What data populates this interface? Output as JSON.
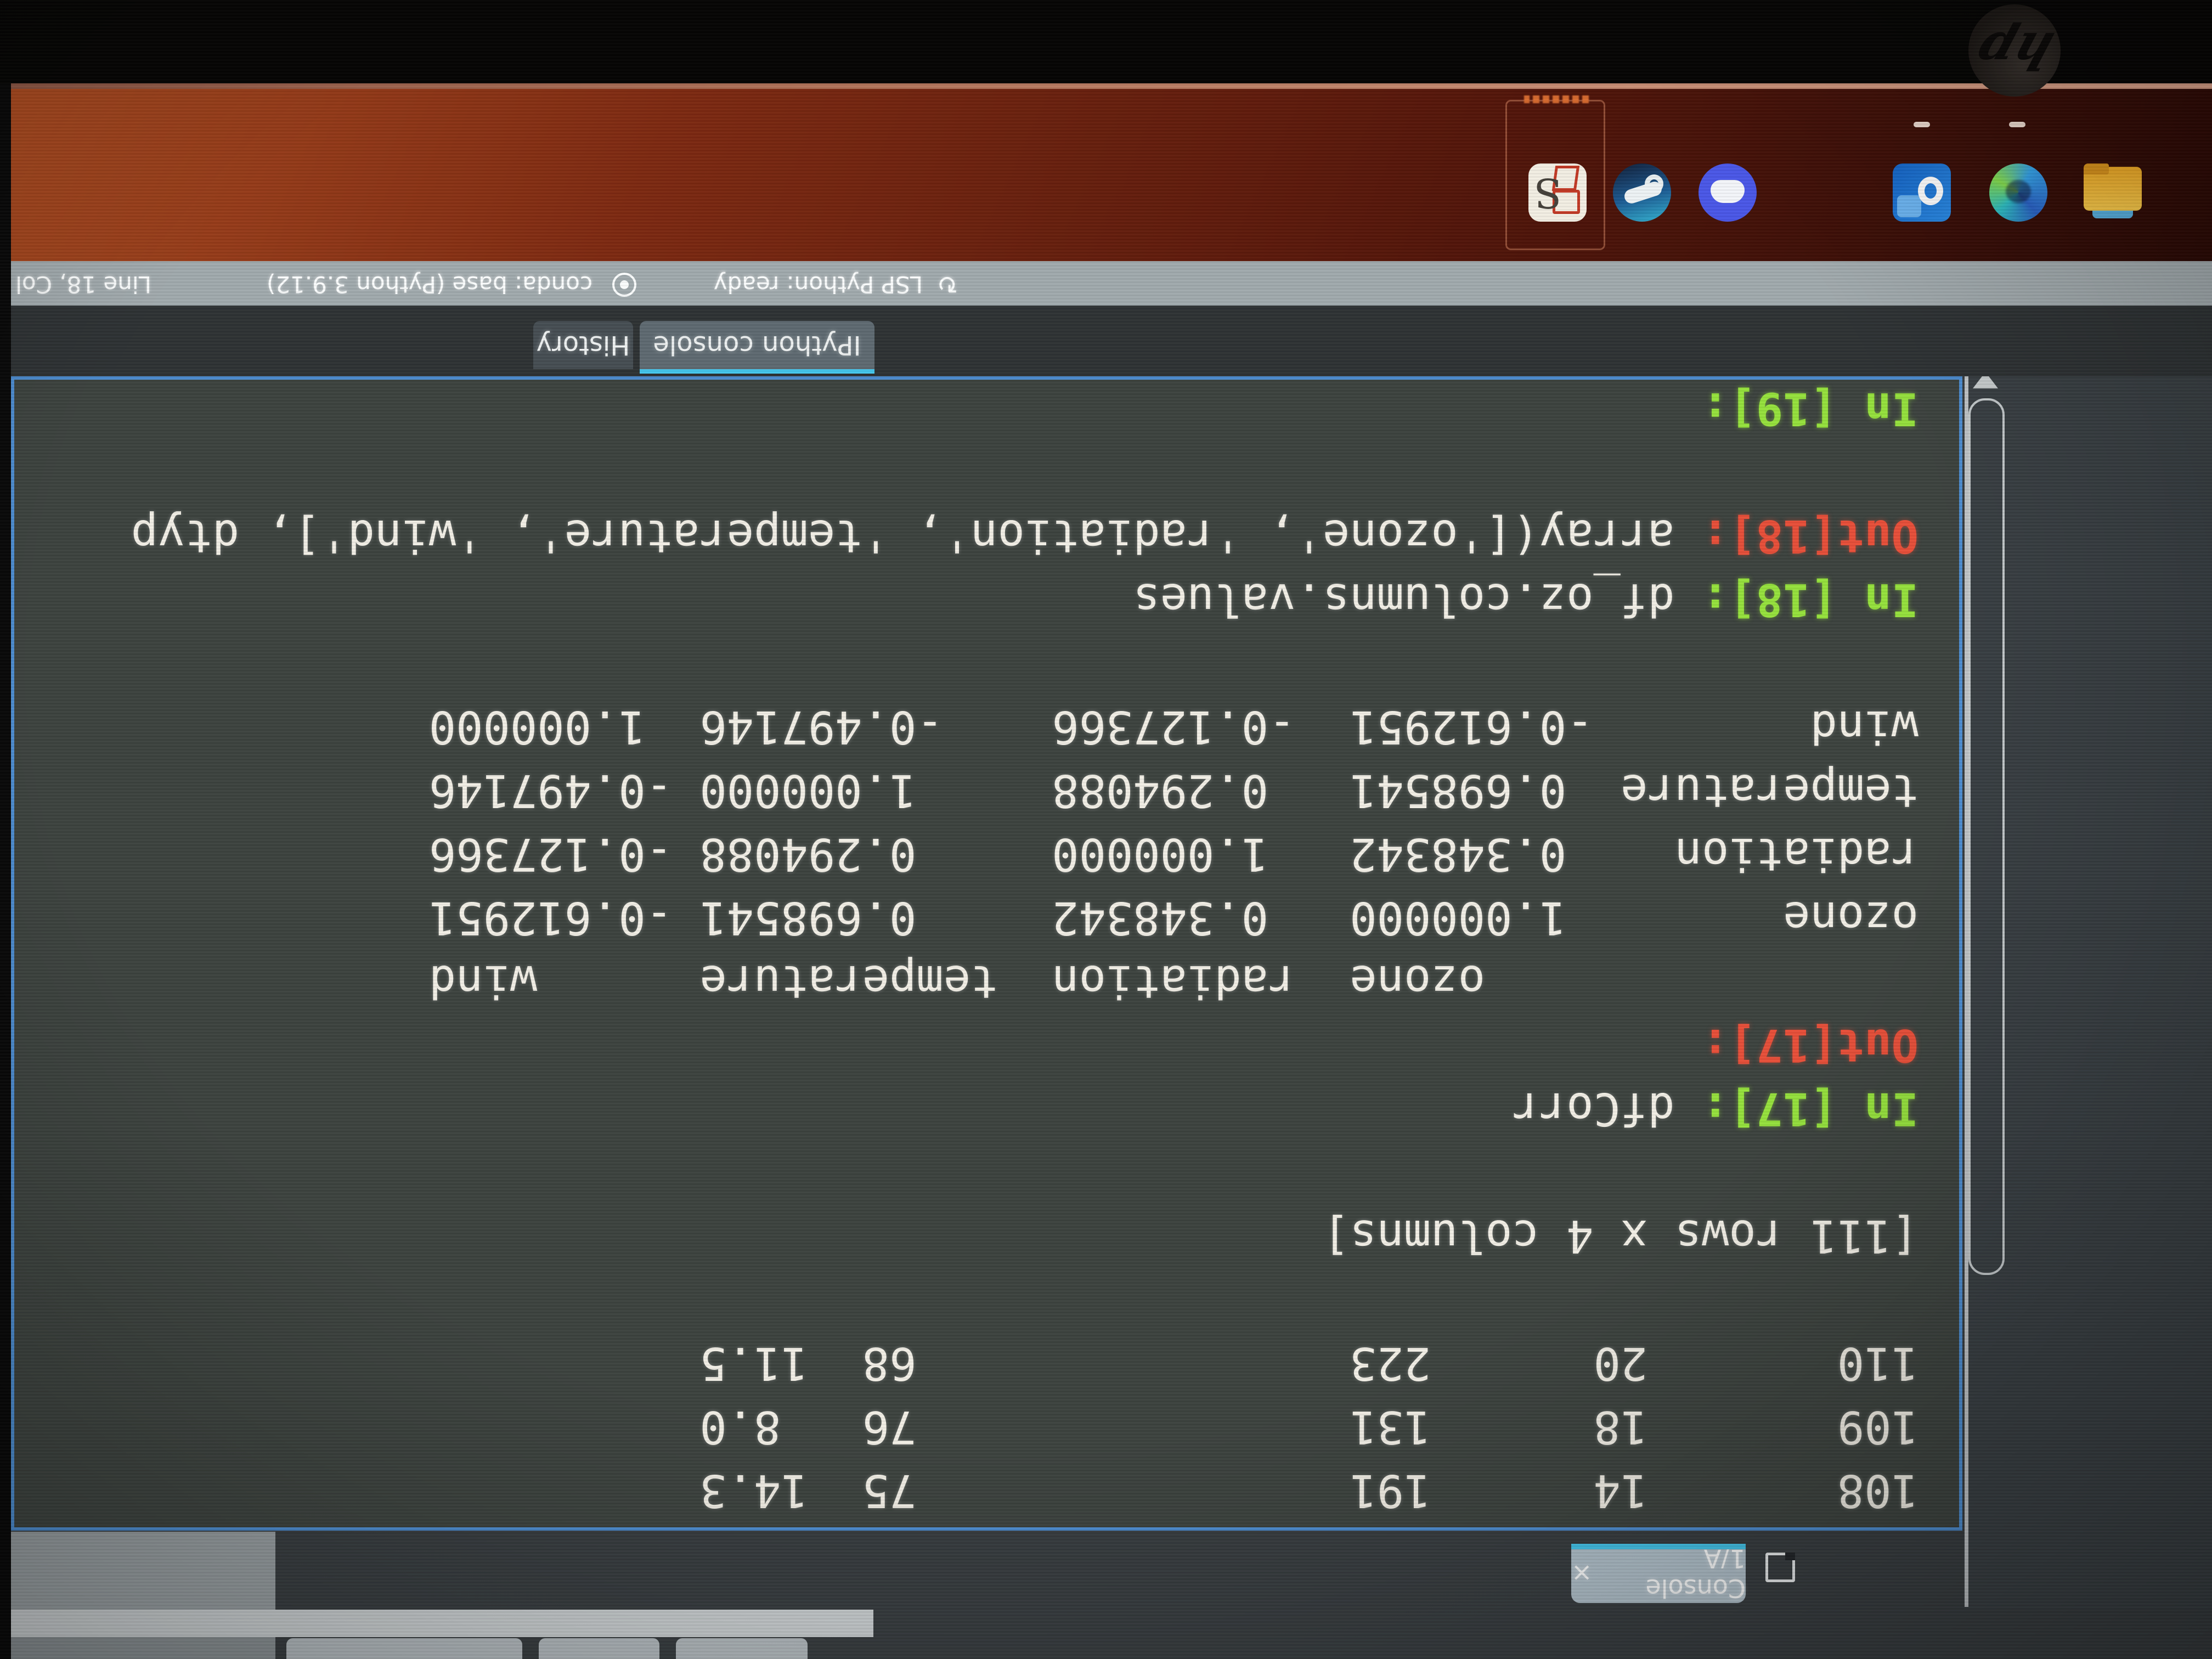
{
  "ide": {
    "console_tab": {
      "label": "Console 1/A",
      "close_glyph": "×"
    },
    "pane_tabs": {
      "selected": "IPython console",
      "other": "History"
    },
    "status_bar": {
      "lsp": "LSP Python: ready",
      "lsp_icon_glyph": "↻",
      "conda": "conda: base (Python 3.9.12)",
      "cursor": "Line 18, Col"
    },
    "console": {
      "lines": [
        {
          "segments": [
            {
              "role": "plain",
              "text": "108       14      191                75  14.3"
            }
          ]
        },
        {
          "segments": [
            {
              "role": "plain",
              "text": "109       18      131                76   8.0"
            }
          ]
        },
        {
          "segments": [
            {
              "role": "plain",
              "text": "110       20      223                68  11.5"
            }
          ]
        },
        {
          "segments": []
        },
        {
          "segments": [
            {
              "role": "plain",
              "text": "[111 rows x 4 columns]"
            }
          ]
        },
        {
          "segments": []
        },
        {
          "segments": [
            {
              "role": "prompt-in",
              "text": "In [17]: "
            },
            {
              "role": "plain",
              "text": "dfCorr"
            }
          ]
        },
        {
          "segments": [
            {
              "role": "prompt-out",
              "text": "Out[17]:"
            }
          ]
        },
        {
          "segments": [
            {
              "role": "plain",
              "text": "                ozone  radiation  temperature      wind"
            }
          ]
        },
        {
          "segments": [
            {
              "role": "plain",
              "text": "ozone        1.000000   0.348342     0.698541 -0.612951"
            }
          ]
        },
        {
          "segments": [
            {
              "role": "plain",
              "text": "radiation    0.348342   1.000000     0.294088 -0.127366"
            }
          ]
        },
        {
          "segments": [
            {
              "role": "plain",
              "text": "temperature  0.698541   0.294088     1.000000 -0.497146"
            }
          ]
        },
        {
          "segments": [
            {
              "role": "plain",
              "text": "wind        -0.612951  -0.127366    -0.497146  1.000000"
            }
          ]
        },
        {
          "segments": []
        },
        {
          "segments": [
            {
              "role": "prompt-in",
              "text": "In [18]: "
            },
            {
              "role": "plain",
              "text": "df_oz.columns.values"
            }
          ]
        },
        {
          "segments": [
            {
              "role": "prompt-out",
              "text": "Out[18]: "
            },
            {
              "role": "plain",
              "text": "array(['ozone', 'radiation', 'temperature', 'wind'], dtyp"
            }
          ]
        },
        {
          "segments": []
        },
        {
          "segments": [
            {
              "role": "prompt-in",
              "text": "In [19]: "
            }
          ]
        }
      ]
    }
  },
  "desktop": {
    "taskbar": {
      "icons": [
        {
          "name": "file-explorer-icon"
        },
        {
          "name": "edge-browser-icon",
          "running_indicator": true
        },
        {
          "name": "outlook-icon",
          "running_indicator": true
        },
        {
          "name": "discord-icon"
        },
        {
          "name": "steam-icon"
        },
        {
          "name": "white-app-red-glyph-icon"
        }
      ]
    }
  },
  "device": {
    "bezel_logo": "hp"
  },
  "photo_note": {
    "orientation": "rotated-180"
  },
  "colors": {
    "pane_border": "#4e8ed2",
    "tab_accent": "#45c6ec",
    "prompt_in": "#96e23e",
    "prompt_out": "#e8503a",
    "console_text": "#f2efe6",
    "console_bg": "#3e4440",
    "statusbar_bg": "#a2abae",
    "wallpaper_bright": "#a84a20",
    "bezel": "#070605"
  }
}
